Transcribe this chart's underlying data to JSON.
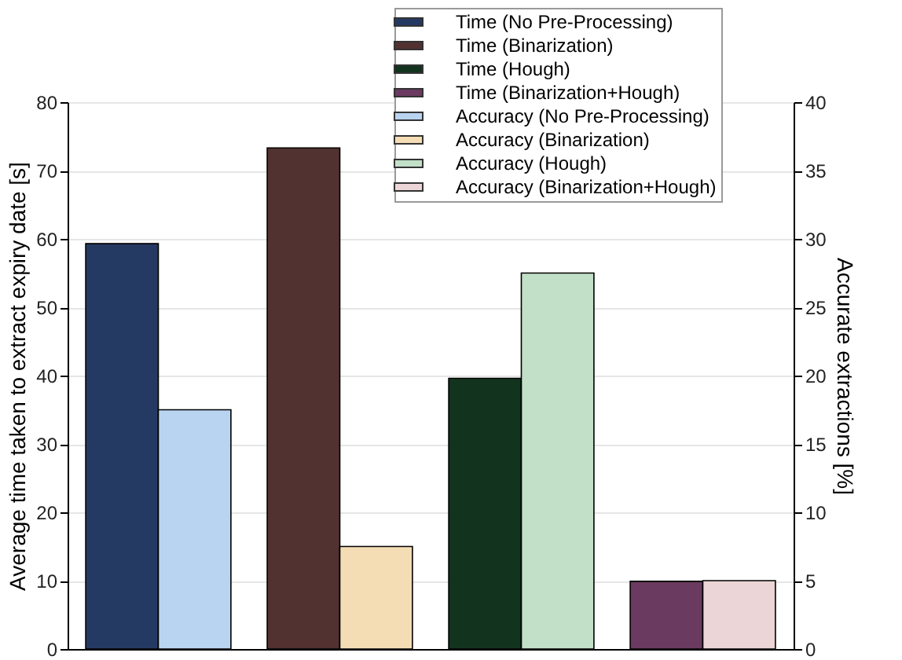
{
  "chart_data": {
    "type": "bar",
    "ylabel": "Average time taken to extract expiry date [s]",
    "y2label": "Accurate extractions [%]",
    "categories": [
      null,
      null,
      null,
      null
    ],
    "series": [
      {
        "name": "Time (No Pre-Processing)",
        "color": "#253a63",
        "values": [
          59.3,
          null,
          null,
          null
        ]
      },
      {
        "name": "Time (Binarization)",
        "color": "#523131",
        "values": [
          null,
          73.3,
          null,
          null
        ]
      },
      {
        "name": "Time (Hough)",
        "color": "#12341f",
        "values": [
          null,
          null,
          39.6,
          null
        ]
      },
      {
        "name": "Time (Binarization+Hough)",
        "color": "#6b3a60",
        "values": [
          null,
          null,
          null,
          9.9
        ]
      },
      {
        "name": "Accuracy (No Pre-Processing)",
        "color": "#b9d4f1",
        "axis": "y2",
        "values": [
          17.5,
          null,
          null,
          null
        ]
      },
      {
        "name": "Accuracy (Binarization)",
        "color": "#f4ddb5",
        "axis": "y2",
        "values": [
          null,
          7.5,
          null,
          null
        ]
      },
      {
        "name": "Accuracy (Hough)",
        "color": "#c2dfc7",
        "axis": "y2",
        "values": [
          null,
          null,
          27.5,
          null
        ]
      },
      {
        "name": "Accuracy (Binarization+Hough)",
        "color": "#ecd5d6",
        "axis": "y2",
        "values": [
          null,
          null,
          null,
          5
        ]
      }
    ],
    "ylim": [
      0,
      80
    ],
    "yticks": [
      0,
      10,
      20,
      30,
      40,
      50,
      60,
      70,
      80
    ],
    "y2lim": [
      0,
      40
    ],
    "y2ticks": [
      0,
      5,
      10,
      15,
      20,
      25,
      30,
      35,
      40
    ],
    "grid": "y",
    "legend": "top right"
  }
}
